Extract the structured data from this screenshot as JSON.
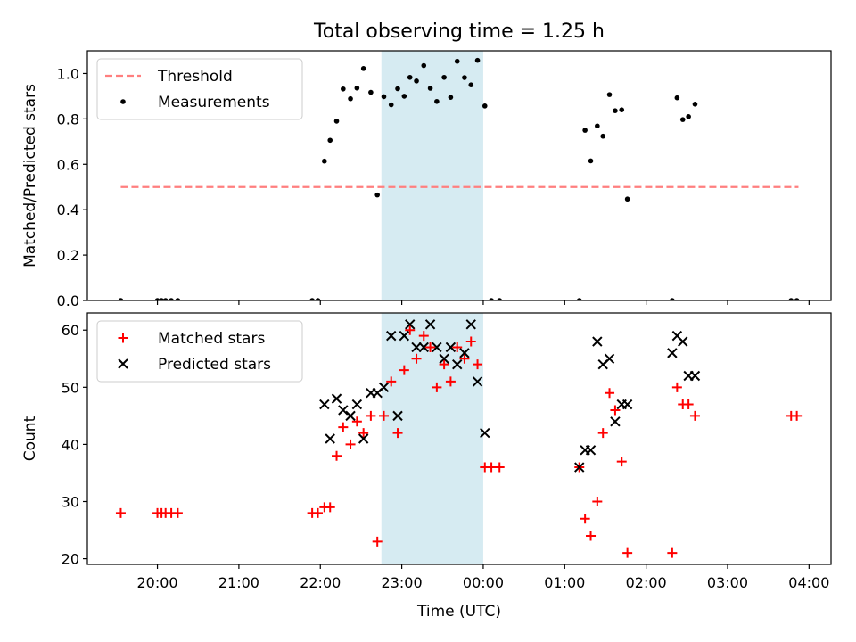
{
  "figure": {
    "title": "Total observing time = 1.25 h",
    "colors": {
      "threshold": "#ff7f7f",
      "span": "#add8e6",
      "matched": "#ff0000",
      "predicted": "#000000",
      "measurement": "#000000"
    }
  },
  "chart_data": [
    {
      "type": "scatter",
      "title": "Total observing time = 1.25 h",
      "xlabel": "",
      "ylabel": "Matched/Predicted stars",
      "x_unit": "hours after 20:00 UTC (negative = before)",
      "xlim": [
        -0.86,
        8.27
      ],
      "ylim": [
        0.0,
        1.1
      ],
      "yticks": [
        0.0,
        0.2,
        0.4,
        0.6,
        0.8,
        1.0
      ],
      "ytick_labels": [
        "0.0",
        "0.2",
        "0.4",
        "0.6",
        "0.8",
        "1.0"
      ],
      "legend_position": "top-left",
      "shaded_span": [
        2.75,
        4.0
      ],
      "series": [
        {
          "name": "Threshold",
          "style": "dashed-line",
          "x": [
            -0.45,
            7.87
          ],
          "y": [
            0.5,
            0.5
          ]
        },
        {
          "name": "Measurements",
          "style": "dot",
          "x": [
            -0.45,
            0.0,
            0.05,
            0.1,
            0.17,
            0.25,
            1.9,
            1.97,
            2.05,
            2.12,
            2.2,
            2.28,
            2.37,
            2.45,
            2.53,
            2.62,
            2.7,
            2.78,
            2.87,
            2.95,
            3.03,
            3.1,
            3.18,
            3.27,
            3.35,
            3.43,
            3.52,
            3.6,
            3.68,
            3.77,
            3.85,
            3.93,
            4.02,
            4.1,
            4.2,
            5.18,
            5.25,
            5.32,
            5.4,
            5.47,
            5.55,
            5.62,
            5.7,
            5.77,
            6.32,
            6.38,
            6.45,
            6.52,
            6.6,
            7.78,
            7.85
          ],
          "y": [
            0.0,
            0.0,
            0.0,
            0.0,
            0.0,
            0.0,
            0.0,
            0.0,
            0.614,
            0.706,
            0.79,
            0.932,
            0.889,
            0.936,
            1.022,
            0.917,
            0.465,
            0.898,
            0.862,
            0.933,
            0.9,
            0.983,
            0.967,
            1.035,
            0.935,
            0.877,
            0.983,
            0.895,
            1.054,
            0.982,
            0.95,
            1.058,
            0.857,
            0.0,
            0.0,
            0.0,
            0.75,
            0.615,
            0.769,
            0.724,
            0.907,
            0.836,
            0.84,
            0.447,
            0.0,
            0.893,
            0.797,
            0.81,
            0.865,
            0.0,
            0.0
          ]
        }
      ]
    },
    {
      "type": "scatter",
      "title": "",
      "xlabel": "Time (UTC)",
      "ylabel": "Count",
      "x_unit": "hours after 20:00 UTC (negative = before)",
      "xlim": [
        -0.86,
        8.27
      ],
      "ylim": [
        19,
        63
      ],
      "xticks": [
        0,
        1,
        2,
        3,
        4,
        5,
        6,
        7,
        8
      ],
      "xtick_labels": [
        "20:00",
        "21:00",
        "22:00",
        "23:00",
        "00:00",
        "01:00",
        "02:00",
        "03:00",
        "04:00"
      ],
      "yticks": [
        20,
        30,
        40,
        50,
        60
      ],
      "ytick_labels": [
        "20",
        "30",
        "40",
        "50",
        "60"
      ],
      "legend_position": "top-left",
      "shaded_span": [
        2.75,
        4.0
      ],
      "series": [
        {
          "name": "Matched stars",
          "style": "plus",
          "x": [
            -0.45,
            0.0,
            0.05,
            0.1,
            0.17,
            0.25,
            1.9,
            1.97,
            2.05,
            2.12,
            2.2,
            2.28,
            2.37,
            2.45,
            2.53,
            2.62,
            2.7,
            2.78,
            2.87,
            2.95,
            3.03,
            3.1,
            3.18,
            3.27,
            3.35,
            3.43,
            3.52,
            3.6,
            3.68,
            3.77,
            3.85,
            3.93,
            4.02,
            4.1,
            4.2,
            5.18,
            5.25,
            5.32,
            5.4,
            5.47,
            5.55,
            5.62,
            5.7,
            5.77,
            6.32,
            6.38,
            6.45,
            6.52,
            6.6,
            7.78,
            7.85
          ],
          "y": [
            28,
            28,
            28,
            28,
            28,
            28,
            28,
            28,
            29,
            29,
            38,
            43,
            40,
            44,
            42,
            45,
            23,
            45,
            51,
            42,
            53,
            60,
            55,
            59,
            57,
            50,
            54,
            51,
            57,
            55,
            58,
            54,
            36,
            36,
            36,
            36,
            27,
            24,
            30,
            42,
            49,
            46,
            37,
            21,
            21,
            50,
            47,
            47,
            45,
            45,
            45
          ]
        },
        {
          "name": "Predicted stars",
          "style": "x",
          "x": [
            2.05,
            2.12,
            2.2,
            2.28,
            2.37,
            2.45,
            2.53,
            2.62,
            2.7,
            2.78,
            2.87,
            2.95,
            3.03,
            3.1,
            3.18,
            3.27,
            3.35,
            3.43,
            3.52,
            3.6,
            3.68,
            3.77,
            3.85,
            3.93,
            4.02,
            5.18,
            5.25,
            5.32,
            5.4,
            5.47,
            5.55,
            5.62,
            5.7,
            5.77,
            6.32,
            6.38,
            6.45,
            6.52,
            6.6
          ],
          "y": [
            47,
            41,
            48,
            46,
            45,
            47,
            41,
            49,
            49,
            50,
            59,
            45,
            59,
            61,
            57,
            57,
            61,
            57,
            55,
            57,
            54,
            56,
            61,
            51,
            42,
            36,
            39,
            39,
            58,
            54,
            55,
            44,
            47,
            47,
            56,
            59,
            58,
            52,
            52
          ]
        }
      ]
    }
  ]
}
